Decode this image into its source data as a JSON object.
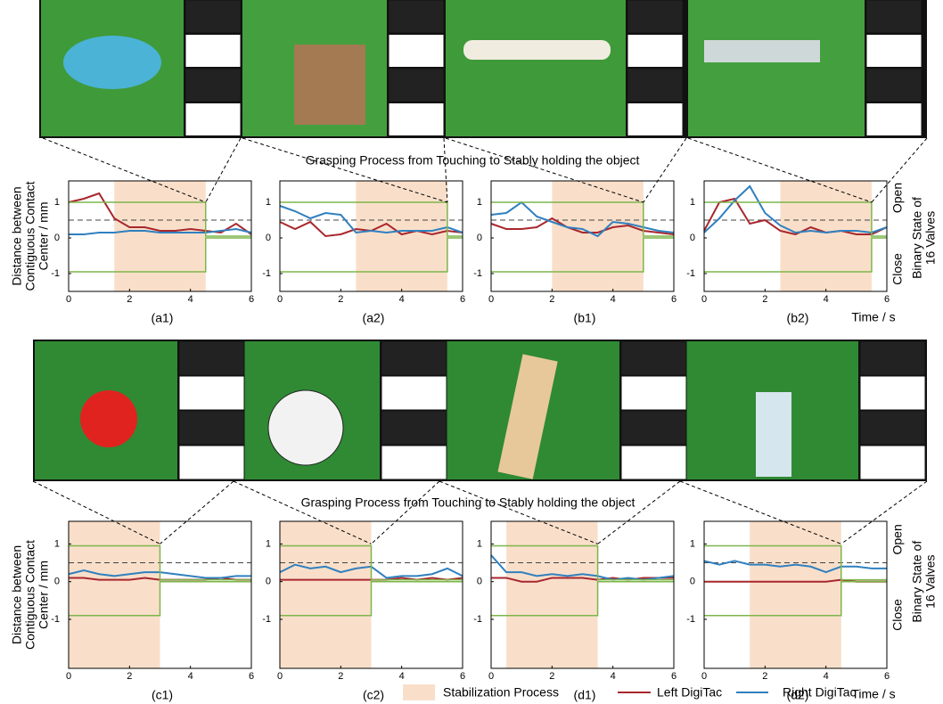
{
  "figure": {
    "process_title_top": "Grasping Process from Touching to Stably holding the object",
    "process_title_bottom": "Grasping Process from Touching to Stably holding the object",
    "stabilization_label": "Stabilization Process",
    "stabilization_color": "#f9dfca"
  },
  "chart_data": [
    {
      "type": "line",
      "caption": "(a1)",
      "ylabel": [
        "Distance between",
        "Contiguous Contact",
        "Center / mm"
      ],
      "x": [
        0,
        0.5,
        1,
        1.5,
        2,
        2.5,
        3,
        3.5,
        4,
        4.5,
        5,
        5.5,
        6
      ],
      "xlim": [
        0,
        6
      ],
      "xticks": [
        0,
        2,
        4,
        6
      ],
      "ylim": [
        -1.5,
        1.6
      ],
      "yticks": [
        -1,
        0,
        1
      ],
      "stabilization": [
        1.5,
        4.5
      ],
      "threshold": 0.5,
      "series": [
        {
          "name": "Left DigiTac",
          "color": "#a8272d",
          "values": [
            1.0,
            1.1,
            1.25,
            0.55,
            0.3,
            0.3,
            0.2,
            0.2,
            0.25,
            0.2,
            0.15,
            0.4,
            0.1
          ]
        },
        {
          "name": "Right DigiTac",
          "color": "#3080bf",
          "values": [
            0.1,
            0.1,
            0.15,
            0.15,
            0.2,
            0.2,
            0.15,
            0.15,
            0.15,
            0.15,
            0.2,
            0.25,
            0.15
          ]
        },
        {
          "color": "#7db54a",
          "x": [
            0,
            4.5,
            4.5,
            6
          ],
          "values": [
            1,
            1,
            0.05,
            0.05
          ]
        },
        {
          "color": "#7db54a",
          "x": [
            0,
            4.5,
            4.5,
            6
          ],
          "values": [
            -0.95,
            -0.95,
            0,
            0
          ]
        }
      ]
    },
    {
      "type": "line",
      "caption": "(a2)",
      "x": [
        0,
        0.5,
        1,
        1.5,
        2,
        2.5,
        3,
        3.5,
        4,
        4.5,
        5,
        5.5,
        6
      ],
      "xlim": [
        0,
        6
      ],
      "xticks": [
        0,
        2,
        4,
        6
      ],
      "ylim": [
        -1.5,
        1.6
      ],
      "yticks": [
        -1,
        0,
        1
      ],
      "stabilization": [
        2.5,
        5.5
      ],
      "threshold": 0.5,
      "series": [
        {
          "name": "Left DigiTac",
          "color": "#a8272d",
          "values": [
            0.45,
            0.25,
            0.45,
            0.05,
            0.1,
            0.25,
            0.2,
            0.4,
            0.1,
            0.2,
            0.1,
            0.2,
            0.15
          ]
        },
        {
          "name": "Right DigiTac",
          "color": "#3080bf",
          "values": [
            0.9,
            0.75,
            0.55,
            0.7,
            0.65,
            0.15,
            0.2,
            0.15,
            0.2,
            0.2,
            0.2,
            0.3,
            0.15
          ]
        },
        {
          "color": "#7db54a",
          "x": [
            0,
            5.5,
            5.5,
            6
          ],
          "values": [
            1,
            1,
            0.05,
            0.05
          ]
        },
        {
          "color": "#7db54a",
          "x": [
            0,
            5.5,
            5.5,
            6
          ],
          "values": [
            -0.95,
            -0.95,
            0,
            0
          ]
        }
      ]
    },
    {
      "type": "line",
      "caption": "(b1)",
      "x": [
        0,
        0.5,
        1,
        1.5,
        2,
        2.5,
        3,
        3.5,
        4,
        4.5,
        5,
        5.5,
        6
      ],
      "xlim": [
        0,
        6
      ],
      "xticks": [
        0,
        2,
        4,
        6
      ],
      "ylim": [
        -1.5,
        1.6
      ],
      "yticks": [
        -1,
        0,
        1
      ],
      "stabilization": [
        2,
        5
      ],
      "threshold": 0.5,
      "series": [
        {
          "name": "Left DigiTac",
          "color": "#a8272d",
          "values": [
            0.4,
            0.25,
            0.25,
            0.3,
            0.55,
            0.3,
            0.15,
            0.15,
            0.3,
            0.35,
            0.2,
            0.15,
            0.1
          ]
        },
        {
          "name": "Right DigiTac",
          "color": "#3080bf",
          "values": [
            0.65,
            0.7,
            1.0,
            0.6,
            0.45,
            0.3,
            0.25,
            0.05,
            0.45,
            0.4,
            0.3,
            0.2,
            0.15
          ]
        },
        {
          "color": "#7db54a",
          "x": [
            0,
            5,
            5,
            6
          ],
          "values": [
            1,
            1,
            0.05,
            0.05
          ]
        },
        {
          "color": "#7db54a",
          "x": [
            0,
            5,
            5,
            6
          ],
          "values": [
            -0.95,
            -0.95,
            0,
            0
          ]
        }
      ]
    },
    {
      "type": "line",
      "caption": "(b2)",
      "xlabel": "Time / s",
      "open_label": "Open",
      "close_label": "Close",
      "y2label": [
        "Binary State of",
        "16 Valves"
      ],
      "x": [
        0,
        0.5,
        1,
        1.5,
        2,
        2.5,
        3,
        3.5,
        4,
        4.5,
        5,
        5.5,
        6
      ],
      "xlim": [
        0,
        6
      ],
      "xticks": [
        0,
        2,
        4,
        6
      ],
      "ylim": [
        -1.5,
        1.6
      ],
      "yticks": [
        -1,
        0,
        1
      ],
      "stabilization": [
        2.5,
        5.5
      ],
      "threshold": 0.5,
      "series": [
        {
          "name": "Left DigiTac",
          "color": "#a8272d",
          "values": [
            0.2,
            1.0,
            1.1,
            0.4,
            0.5,
            0.2,
            0.1,
            0.3,
            0.15,
            0.2,
            0.1,
            0.1,
            0.3
          ]
        },
        {
          "name": "Right DigiTac",
          "color": "#3080bf",
          "values": [
            0.15,
            0.55,
            1.05,
            1.45,
            0.7,
            0.35,
            0.15,
            0.2,
            0.15,
            0.2,
            0.2,
            0.15,
            0.3
          ]
        },
        {
          "color": "#7db54a",
          "x": [
            0,
            5.5,
            5.5,
            6
          ],
          "values": [
            1,
            1,
            0.05,
            0.05
          ]
        },
        {
          "color": "#7db54a",
          "x": [
            0,
            5.5,
            5.5,
            6
          ],
          "values": [
            -0.95,
            -0.95,
            0,
            0
          ]
        }
      ]
    },
    {
      "type": "line",
      "caption": "(c1)",
      "ylabel": [
        "Distance between",
        "Contiguous Contact",
        "Center / mm"
      ],
      "x": [
        0,
        0.5,
        1,
        1.5,
        2,
        2.5,
        3,
        3.5,
        4,
        4.5,
        5,
        5.5,
        6
      ],
      "xlim": [
        0,
        6
      ],
      "xticks": [
        0,
        2,
        4,
        6
      ],
      "ylim": [
        -2.3,
        1.6
      ],
      "yticks": [
        -1,
        0,
        1
      ],
      "stabilization": [
        0,
        3
      ],
      "threshold": 0.5,
      "series": [
        {
          "name": "Left DigiTac",
          "color": "#a8272d",
          "values": [
            0.1,
            0.1,
            0.05,
            0.05,
            0.05,
            0.1,
            0.05,
            0.05,
            0.05,
            0.05,
            0.1,
            0.05,
            0.05
          ]
        },
        {
          "name": "Right DigiTac",
          "color": "#3080bf",
          "values": [
            0.2,
            0.3,
            0.2,
            0.15,
            0.2,
            0.25,
            0.25,
            0.2,
            0.15,
            0.1,
            0.1,
            0.15,
            0.15
          ]
        },
        {
          "color": "#7db54a",
          "x": [
            0,
            3,
            3,
            6
          ],
          "values": [
            0.95,
            0.95,
            0.05,
            0.05
          ]
        },
        {
          "color": "#7db54a",
          "x": [
            0,
            3,
            3,
            6
          ],
          "values": [
            -0.9,
            -0.9,
            0,
            0
          ]
        }
      ]
    },
    {
      "type": "line",
      "caption": "(c2)",
      "x": [
        0,
        0.5,
        1,
        1.5,
        2,
        2.5,
        3,
        3.5,
        4,
        4.5,
        5,
        5.5,
        6
      ],
      "xlim": [
        0,
        6
      ],
      "xticks": [
        0,
        2,
        4,
        6
      ],
      "ylim": [
        -2.3,
        1.6
      ],
      "yticks": [
        -1,
        0,
        1
      ],
      "stabilization": [
        0,
        3
      ],
      "threshold": 0.5,
      "series": [
        {
          "name": "Left DigiTac",
          "color": "#a8272d",
          "values": [
            0.05,
            0.05,
            0.05,
            0.05,
            0.05,
            0.05,
            0.05,
            0.05,
            0.1,
            0.05,
            0.1,
            0.05,
            0.1
          ]
        },
        {
          "name": "Right DigiTac",
          "color": "#3080bf",
          "values": [
            0.25,
            0.45,
            0.35,
            0.4,
            0.25,
            0.35,
            0.4,
            0.1,
            0.15,
            0.15,
            0.2,
            0.35,
            0.15
          ]
        },
        {
          "color": "#7db54a",
          "x": [
            0,
            3,
            3,
            6
          ],
          "values": [
            0.95,
            0.95,
            0.05,
            0.05
          ]
        },
        {
          "color": "#7db54a",
          "x": [
            0,
            3,
            3,
            6
          ],
          "values": [
            -0.9,
            -0.9,
            0,
            0
          ]
        }
      ]
    },
    {
      "type": "line",
      "caption": "(d1)",
      "x": [
        0,
        0.5,
        1,
        1.5,
        2,
        2.5,
        3,
        3.5,
        4,
        4.5,
        5,
        5.5,
        6
      ],
      "xlim": [
        0,
        6
      ],
      "xticks": [
        0,
        2,
        4,
        6
      ],
      "ylim": [
        -2.3,
        1.6
      ],
      "yticks": [
        -1,
        0,
        1
      ],
      "stabilization": [
        0.5,
        3.5
      ],
      "threshold": 0.5,
      "series": [
        {
          "name": "Left DigiTac",
          "color": "#a8272d",
          "values": [
            0.1,
            0.1,
            0.0,
            0.0,
            0.1,
            0.1,
            0.1,
            0.05,
            0.1,
            0.05,
            0.1,
            0.1,
            0.1
          ]
        },
        {
          "name": "Right DigiTac",
          "color": "#3080bf",
          "values": [
            0.7,
            0.25,
            0.25,
            0.15,
            0.2,
            0.15,
            0.2,
            0.15,
            0.05,
            0.1,
            0.05,
            0.1,
            0.15
          ]
        },
        {
          "color": "#7db54a",
          "x": [
            0,
            3.5,
            3.5,
            6
          ],
          "values": [
            0.95,
            0.95,
            0.05,
            0.05
          ]
        },
        {
          "color": "#7db54a",
          "x": [
            0,
            3.5,
            3.5,
            6
          ],
          "values": [
            -0.9,
            -0.9,
            0,
            0
          ]
        }
      ]
    },
    {
      "type": "line",
      "caption": "(d2)",
      "xlabel": "Time / s",
      "open_label": "Open",
      "close_label": "Close",
      "y2label": [
        "Binary State of",
        "16 Valves"
      ],
      "x": [
        0,
        0.5,
        1,
        1.5,
        2,
        2.5,
        3,
        3.5,
        4,
        4.5,
        5,
        5.5,
        6
      ],
      "xlim": [
        0,
        6
      ],
      "xticks": [
        0,
        2,
        4,
        6
      ],
      "ylim": [
        -2.3,
        1.6
      ],
      "yticks": [
        -1,
        0,
        1
      ],
      "stabilization": [
        1.5,
        4.5
      ],
      "threshold": 0.5,
      "series": [
        {
          "name": "Left DigiTac",
          "color": "#a8272d",
          "values": [
            0,
            0,
            0,
            0,
            0,
            0,
            0,
            0,
            0,
            0.05,
            0,
            0,
            0
          ]
        },
        {
          "name": "Right DigiTac",
          "color": "#3080bf",
          "values": [
            0.55,
            0.45,
            0.55,
            0.45,
            0.45,
            0.4,
            0.45,
            0.4,
            0.25,
            0.4,
            0.4,
            0.35,
            0.35
          ]
        },
        {
          "color": "#7db54a",
          "x": [
            0,
            4.5,
            4.5,
            6
          ],
          "values": [
            0.95,
            0.95,
            0.05,
            0.05
          ]
        },
        {
          "color": "#7db54a",
          "x": [
            0,
            4.5,
            4.5,
            6
          ],
          "values": [
            -0.9,
            -0.9,
            0,
            0
          ]
        }
      ]
    }
  ]
}
